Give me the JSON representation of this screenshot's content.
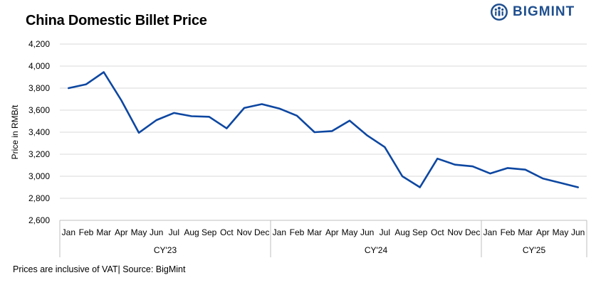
{
  "title": "China Domestic Billet Price",
  "logo": {
    "text": "BIGMINT"
  },
  "footnote": "Prices are inclusive of VAT| Source: BigMint",
  "colors": {
    "line": "#0d47a1",
    "grid": "#d9d9d9",
    "logo": "#1f4f8f"
  },
  "chart_data": {
    "type": "line",
    "title": "China Domestic Billet Price",
    "ylabel": "Price in RMB/t",
    "xlabel": "",
    "ylim": [
      2600,
      4200
    ],
    "yticks": [
      2600,
      2800,
      3000,
      3200,
      3400,
      3600,
      3800,
      4000,
      4200
    ],
    "ytick_labels": [
      "2,600",
      "2,800",
      "3,000",
      "3,200",
      "3,400",
      "3,600",
      "3,800",
      "4,000",
      "4,200"
    ],
    "grid": true,
    "legend": "none",
    "categories": [
      "Jan",
      "Feb",
      "Mar",
      "Apr",
      "May",
      "Jun",
      "Jul",
      "Aug",
      "Sep",
      "Oct",
      "Nov",
      "Dec",
      "Jan",
      "Feb",
      "Mar",
      "Apr",
      "May",
      "Jun",
      "Jul",
      "Aug",
      "Sep",
      "Oct",
      "Nov",
      "Dec",
      "Jan",
      "Feb",
      "Mar",
      "Apr",
      "May",
      "Jun"
    ],
    "groups": [
      {
        "label": "CY'23",
        "count": 12
      },
      {
        "label": "CY'24",
        "count": 12
      },
      {
        "label": "CY'25",
        "count": 6
      }
    ],
    "series": [
      {
        "values": [
          3800,
          3835,
          3945,
          3690,
          3395,
          3510,
          3575,
          3545,
          3540,
          3435,
          3620,
          3655,
          3615,
          3550,
          3400,
          3410,
          3505,
          3370,
          3265,
          3000,
          2900,
          3160,
          3105,
          3090,
          3025,
          3075,
          3060,
          2980,
          2940,
          2900
        ]
      }
    ]
  }
}
